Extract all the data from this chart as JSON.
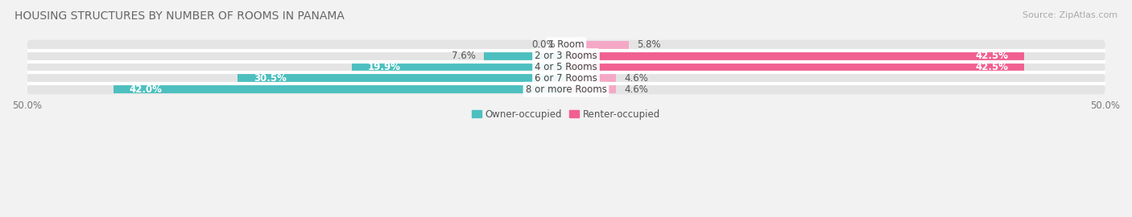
{
  "title": "HOUSING STRUCTURES BY NUMBER OF ROOMS IN PANAMA",
  "source": "Source: ZipAtlas.com",
  "categories": [
    "1 Room",
    "2 or 3 Rooms",
    "4 or 5 Rooms",
    "6 or 7 Rooms",
    "8 or more Rooms"
  ],
  "owner_values": [
    0.0,
    7.6,
    19.9,
    30.5,
    42.0
  ],
  "renter_values": [
    5.8,
    42.5,
    42.5,
    4.6,
    4.6
  ],
  "owner_color": "#4dbfbf",
  "renter_color": "#f06090",
  "renter_light_color": "#f5a8c5",
  "owner_label": "Owner-occupied",
  "renter_label": "Renter-occupied",
  "xlim": [
    -50,
    50
  ],
  "bar_height": 0.72,
  "background_color": "#f2f2f2",
  "bar_bg_color": "#e4e4e4",
  "title_fontsize": 10,
  "source_fontsize": 8,
  "label_fontsize": 8.5,
  "axis_label_fontsize": 8.5,
  "legend_fontsize": 8.5,
  "fig_width": 14.06,
  "fig_height": 2.7
}
